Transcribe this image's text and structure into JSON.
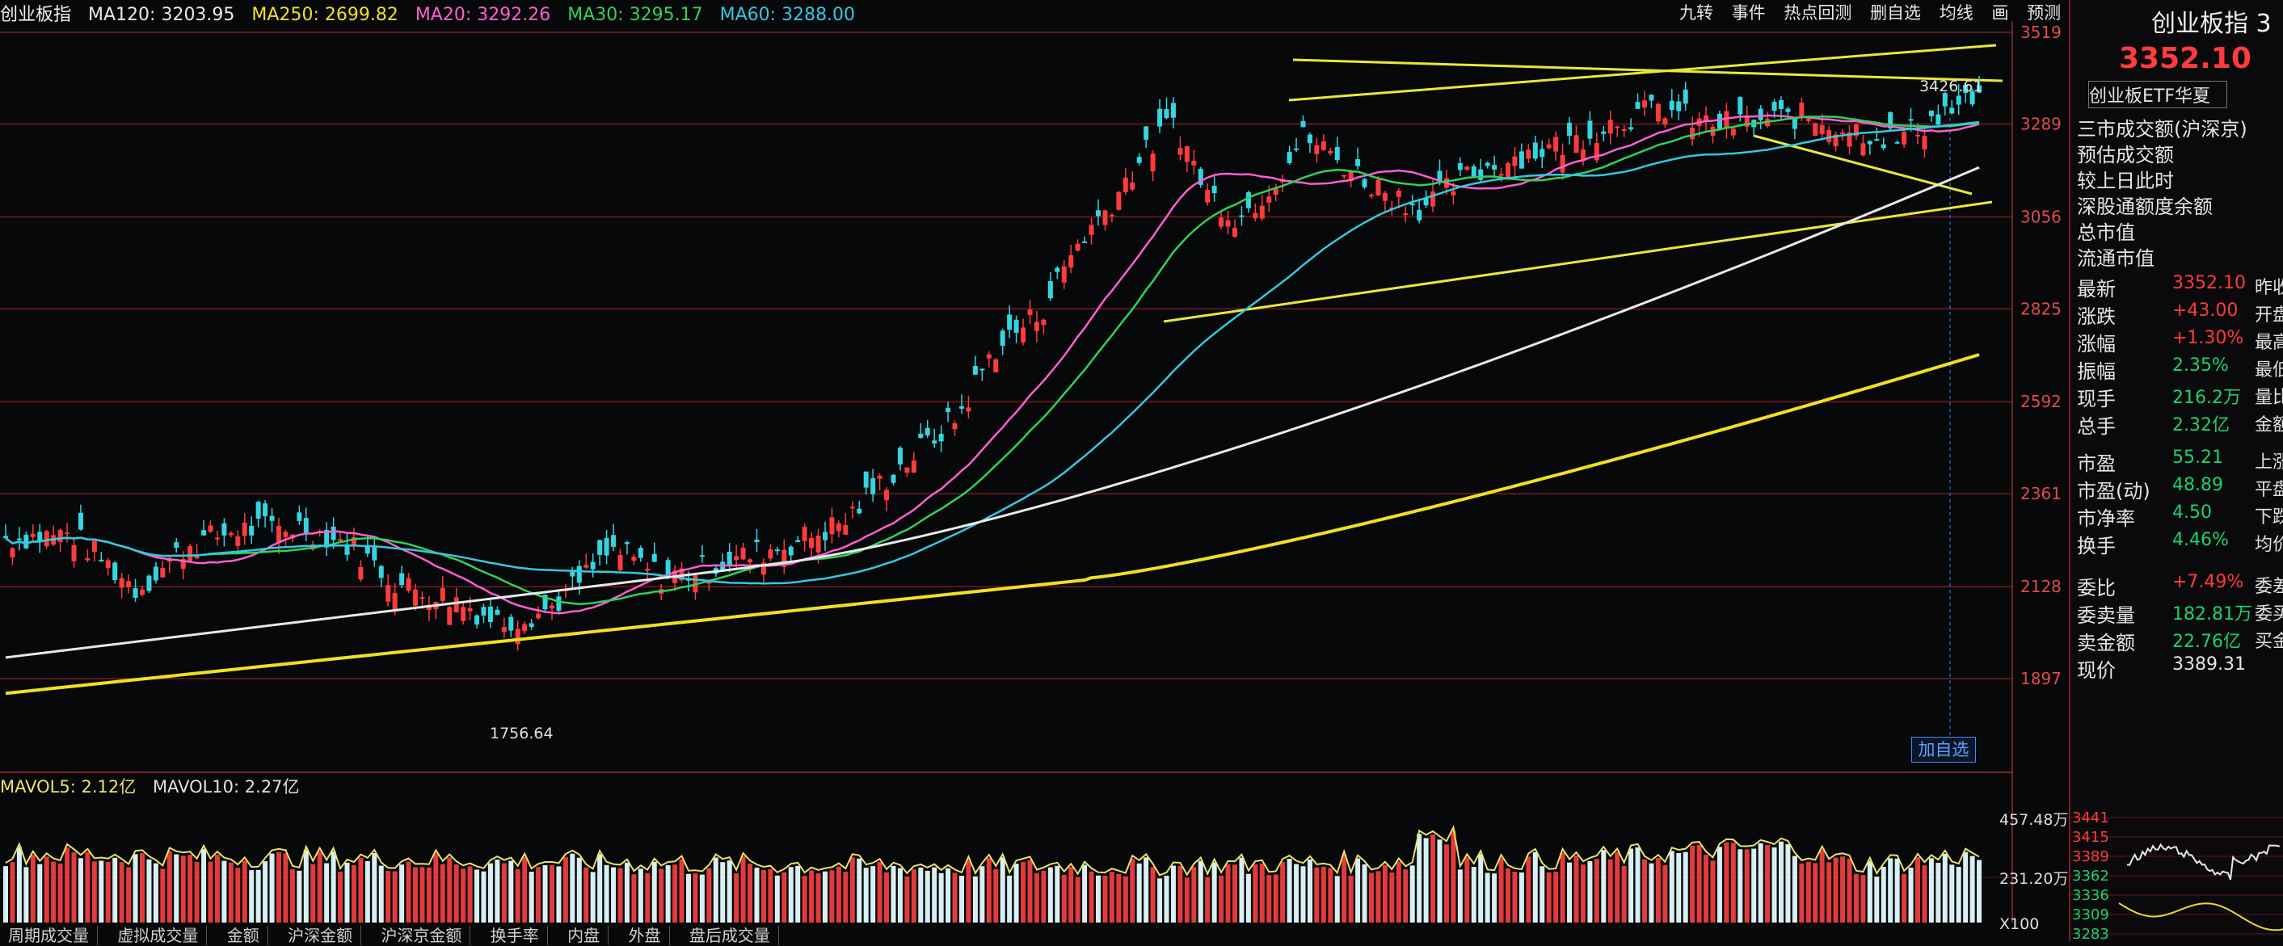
{
  "topbar": {
    "title": "创业板指",
    "ma120": "MA120: 3203.95",
    "ma250": "MA250: 2699.82",
    "ma20": "MA20: 3292.26",
    "ma30": "MA30: 3295.17",
    "ma60": "MA60: 3288.00"
  },
  "toolbar": [
    "九转",
    "事件",
    "热点回测",
    "删自选",
    "均线",
    "画",
    "预测"
  ],
  "price_axis": [
    "3519",
    "3289",
    "3056",
    "2825",
    "2592",
    "2361",
    "2128",
    "1897"
  ],
  "annotations": {
    "high": "3426.61",
    "low": "1756.64"
  },
  "add_button": "加自选",
  "volume": {
    "mavol5": "MAVOL5: 2.12亿",
    "mavol10": "MAVOL10: 2.27亿",
    "axis": [
      "457.48万",
      "231.20万",
      "X100"
    ]
  },
  "bottom_tabs": [
    "周期成交量",
    "虚拟成交量",
    "金额",
    "沪深金额",
    "沪深京金额",
    "换手率",
    "内盘",
    "外盘",
    "盘后成交量"
  ],
  "panel": {
    "title": "创业板指 3",
    "price": "3352.10",
    "etf": "创业板ETF华夏",
    "menu": [
      "三市成交额(沪深京)",
      "预估成交额",
      "较上日此时",
      "深股通额度余额",
      "总市值",
      "流通市值"
    ],
    "stats": [
      {
        "label": "最新",
        "value": "3352.10",
        "extra": "昨收"
      },
      {
        "label": "涨跌",
        "value": "+43.00",
        "extra": "开盘"
      },
      {
        "label": "涨幅",
        "value": "+1.30%",
        "extra": "最高"
      },
      {
        "label": "振幅",
        "value": "2.35%",
        "extra": "最低"
      },
      {
        "label": "现手",
        "value": "216.2万",
        "extra": "量比"
      },
      {
        "label": "总手",
        "value": "2.32亿",
        "extra": "金额"
      },
      {
        "label": "市盈",
        "value": "55.21",
        "extra": "上涨"
      },
      {
        "label": "市盈(动)",
        "value": "48.89",
        "extra": "平盘"
      },
      {
        "label": "市净率",
        "value": "4.50",
        "extra": "下跌"
      },
      {
        "label": "换手",
        "value": "4.46%",
        "extra": "均价"
      },
      {
        "label": "委比",
        "value": "+7.49%",
        "extra": "委差"
      },
      {
        "label": "委卖量",
        "value": "182.81万",
        "extra": "委买"
      },
      {
        "label": "卖金额",
        "value": "22.76亿",
        "extra": "买金额"
      },
      {
        "label": "现价",
        "value": "3389.31",
        "extra": ""
      }
    ],
    "mini_axis": [
      "3441",
      "3415",
      "3389",
      "3362",
      "3336",
      "3309",
      "3283"
    ]
  },
  "colors": {
    "up": "#ff3b3b",
    "down": "#33d6e0",
    "ma20": "#ff5fd0",
    "ma30": "#2fd25a",
    "ma60": "#33c9e0",
    "ma120": "#e8e8e8",
    "ma250": "#f0e020",
    "trend": "#e8e83a"
  }
}
